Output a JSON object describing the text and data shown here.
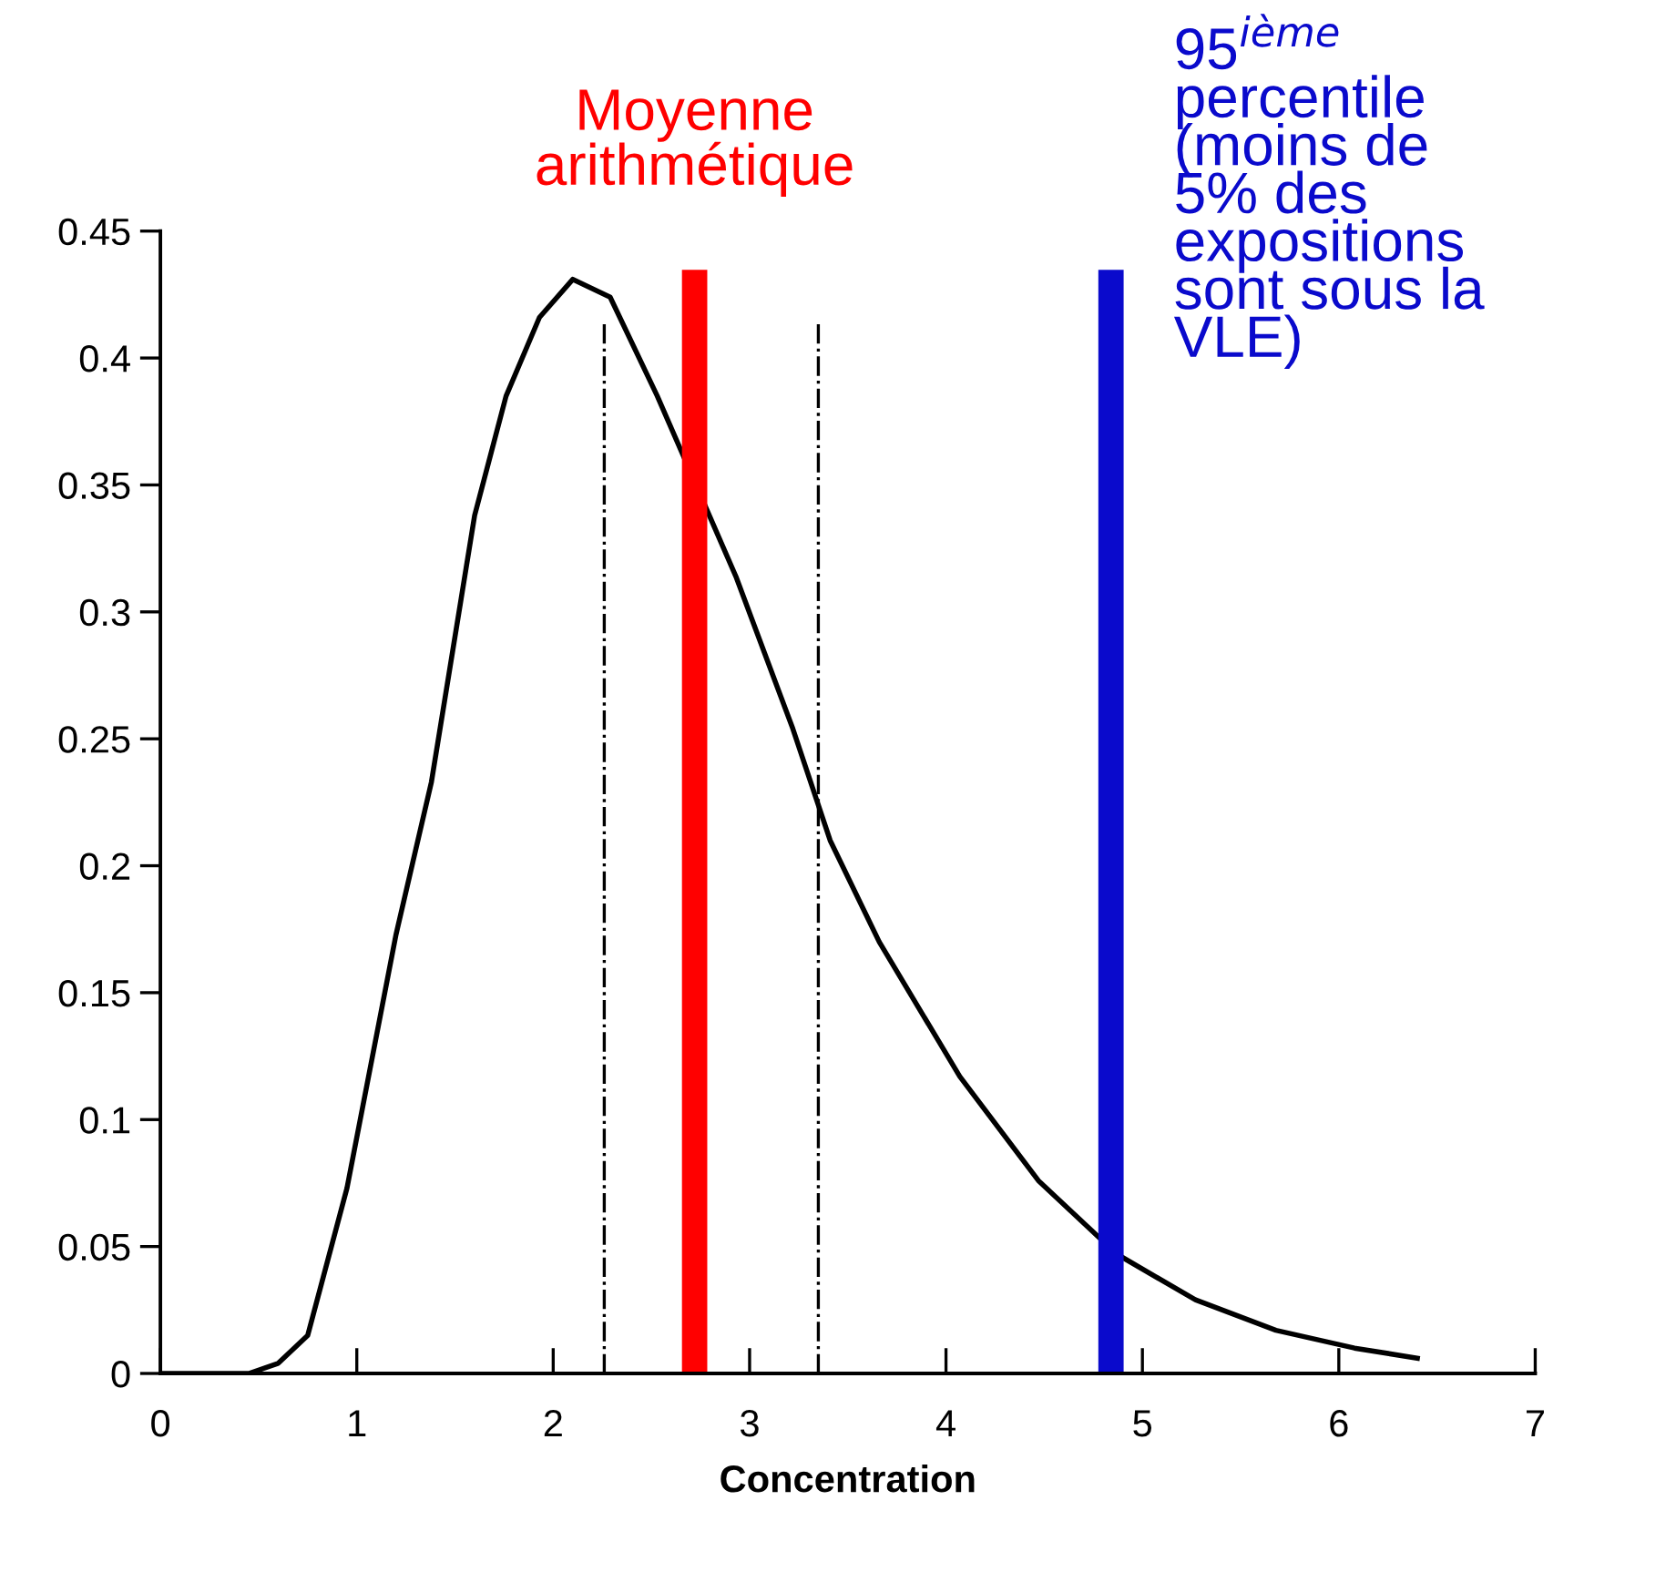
{
  "chart_data": {
    "type": "line",
    "xlabel": "Concentration",
    "x": [
      0,
      0.45,
      0.6,
      0.75,
      0.95,
      1.2,
      1.38,
      1.6,
      1.76,
      1.93,
      2.1,
      2.29,
      2.53,
      2.93,
      3.22,
      3.41,
      3.66,
      4.07,
      4.47,
      4.87,
      5.27,
      5.68,
      6.08,
      6.4
    ],
    "series": [
      {
        "color": "#000000",
        "values": [
          0,
          0,
          0.004,
          0.015,
          0.073,
          0.173,
          0.233,
          0.338,
          0.385,
          0.416,
          0.431,
          0.424,
          0.385,
          0.314,
          0.254,
          0.21,
          0.17,
          0.117,
          0.076,
          0.047,
          0.029,
          0.017,
          0.01,
          0.006
        ]
      }
    ],
    "xlim": [
      0,
      7
    ],
    "ylim": [
      0,
      0.45
    ],
    "xticks": [
      0,
      1,
      2,
      3,
      4,
      5,
      6,
      7
    ],
    "yticks": [
      0,
      0.05,
      0.1,
      0.15,
      0.2,
      0.25,
      0.3,
      0.35,
      0.4,
      0.45
    ],
    "ref_lines": [
      {
        "axis": "x",
        "value": 2.26,
        "color": "#000000",
        "line_style": "dashdot"
      },
      {
        "axis": "x",
        "value": 3.35,
        "color": "#000000",
        "line_style": "dashdot"
      },
      {
        "axis": "x",
        "value": 2.72,
        "color": "#ff0000",
        "line_style": "solid",
        "label": "Moyenne\narithmétique"
      },
      {
        "axis": "x",
        "value": 4.84,
        "color": "#0a0acc",
        "line_style": "solid",
        "label": "95$^{ième}$\npercentile\n(moins de\n5% des\nexpositions\nsont sous la\nVLE)"
      }
    ],
    "grid": false,
    "legend": false,
    "marker": "none",
    "line_style": "solid"
  }
}
